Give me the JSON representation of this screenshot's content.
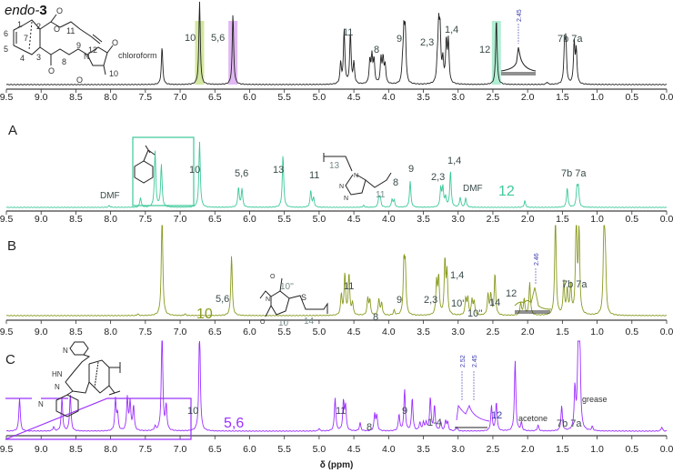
{
  "chart_data": [
    {
      "id": "endo-3",
      "type": "line",
      "title_prefix": "endo-",
      "title_number": "3",
      "color": "#222222",
      "xlim": [
        9.5,
        0.0
      ],
      "xlabel": "δ (ppm)",
      "highlights": [
        {
          "ppm": 6.72,
          "color": "#c8e08a"
        },
        {
          "ppm": 6.24,
          "color": "#d9a6f0"
        },
        {
          "ppm": 2.45,
          "color": "#9ee8c8"
        }
      ],
      "peaks": [
        [
          7.26,
          0.45
        ],
        [
          6.72,
          1.0
        ],
        [
          6.24,
          0.85
        ],
        [
          4.69,
          0.25
        ],
        [
          4.64,
          0.65
        ],
        [
          4.55,
          0.62
        ],
        [
          4.5,
          0.25
        ],
        [
          4.27,
          0.28
        ],
        [
          4.24,
          0.33
        ],
        [
          4.21,
          0.28
        ],
        [
          4.11,
          0.3
        ],
        [
          4.08,
          0.3
        ],
        [
          4.05,
          0.22
        ],
        [
          3.8,
          0.2
        ],
        [
          3.78,
          0.58
        ],
        [
          3.76,
          0.58
        ],
        [
          3.3,
          0.2
        ],
        [
          3.28,
          0.63
        ],
        [
          3.26,
          0.6
        ],
        [
          3.22,
          0.28
        ],
        [
          3.17,
          0.5
        ],
        [
          3.14,
          0.5
        ],
        [
          2.45,
          0.8
        ],
        [
          1.72,
          0.03
        ],
        [
          1.47,
          0.4
        ],
        [
          1.45,
          0.5
        ],
        [
          1.33,
          0.5
        ],
        [
          1.3,
          0.4
        ]
      ],
      "annotations": [
        "chloroform",
        "10",
        "5,6",
        "11",
        "8",
        "9",
        "2,3",
        "1,4",
        "12",
        "7b 7a"
      ],
      "inset_label": "2.45",
      "structure_labels": [
        "1",
        "2",
        "6",
        "7",
        "5",
        "4",
        "3",
        "11",
        "12",
        "8",
        "9",
        "10",
        "O",
        "O",
        "O",
        "O",
        "O",
        "N"
      ]
    },
    {
      "id": "A",
      "type": "line",
      "panel_label": "A",
      "color": "#3cc99a",
      "xlim": [
        9.5,
        0.0
      ],
      "peaks": [
        [
          8.02,
          0.03
        ],
        [
          7.57,
          0.15
        ],
        [
          7.36,
          0.85
        ],
        [
          7.27,
          0.65
        ],
        [
          6.72,
          1.0
        ],
        [
          6.16,
          0.3
        ],
        [
          6.11,
          0.28
        ],
        [
          5.52,
          0.8
        ],
        [
          5.12,
          0.25
        ],
        [
          5.08,
          0.14
        ],
        [
          4.36,
          0.03
        ],
        [
          4.14,
          0.15
        ],
        [
          4.12,
          0.13
        ],
        [
          3.95,
          0.12
        ],
        [
          3.92,
          0.1
        ],
        [
          3.69,
          0.4
        ],
        [
          3.25,
          0.28
        ],
        [
          3.22,
          0.3
        ],
        [
          3.18,
          0.15
        ],
        [
          3.11,
          0.55
        ],
        [
          2.97,
          0.15
        ],
        [
          2.89,
          0.14
        ],
        [
          2.04,
          0.1
        ],
        [
          1.43,
          0.3
        ],
        [
          1.29,
          0.28
        ],
        [
          1.27,
          0.28
        ]
      ],
      "annotations": [
        "DMF",
        "10",
        "5,6",
        "13",
        "11",
        "9",
        "2,3",
        "1,4",
        "DMF",
        "12",
        "7b 7a"
      ],
      "structure_labels": [
        "13",
        "11",
        "8",
        "N",
        "N",
        "N"
      ]
    },
    {
      "id": "B",
      "type": "line",
      "panel_label": "B",
      "color": "#8a9a20",
      "xlim": [
        9.5,
        0.0
      ],
      "peaks": [
        [
          7.61,
          0.02
        ],
        [
          7.26,
          1.3
        ],
        [
          6.93,
          0.02
        ],
        [
          6.26,
          0.73
        ],
        [
          4.68,
          0.25
        ],
        [
          4.63,
          0.5
        ],
        [
          4.57,
          0.5
        ],
        [
          4.52,
          0.15
        ],
        [
          4.3,
          0.2
        ],
        [
          4.27,
          0.18
        ],
        [
          4.14,
          0.2
        ],
        [
          4.1,
          0.15
        ],
        [
          3.92,
          0.06
        ],
        [
          3.78,
          0.6
        ],
        [
          3.76,
          0.55
        ],
        [
          3.31,
          0.4
        ],
        [
          3.28,
          0.45
        ],
        [
          3.19,
          0.65
        ],
        [
          3.16,
          0.5
        ],
        [
          2.89,
          0.2
        ],
        [
          2.86,
          0.2
        ],
        [
          2.8,
          0.18
        ],
        [
          2.77,
          0.16
        ],
        [
          2.57,
          0.25
        ],
        [
          2.53,
          0.25
        ],
        [
          2.47,
          0.5
        ],
        [
          2.1,
          0.15
        ],
        [
          2.05,
          0.2
        ],
        [
          1.97,
          0.4
        ],
        [
          1.6,
          1.3
        ],
        [
          1.48,
          0.4
        ],
        [
          1.43,
          0.3
        ],
        [
          1.38,
          0.35
        ],
        [
          1.3,
          1.3
        ],
        [
          1.26,
          1.0
        ],
        [
          0.9,
          1.3
        ],
        [
          0.88,
          0.5
        ]
      ],
      "annotations": [
        "5,6",
        "10",
        "11",
        "8",
        "9",
        "2,3",
        "1,4",
        "10'",
        "10''",
        "14",
        "12",
        "7b 7a"
      ],
      "inset_label": "2.46",
      "structure_labels": [
        "10''",
        "S",
        "14",
        "10'",
        "N",
        "O",
        "O"
      ]
    },
    {
      "id": "C",
      "type": "line",
      "panel_label": "C",
      "color": "#9b30ff",
      "xlim": [
        9.5,
        0.0
      ],
      "peaks": [
        [
          9.31,
          0.4
        ],
        [
          8.82,
          0.05
        ],
        [
          8.7,
          0.4
        ],
        [
          8.58,
          0.45
        ],
        [
          7.93,
          0.38
        ],
        [
          7.9,
          0.2
        ],
        [
          7.76,
          0.4
        ],
        [
          7.72,
          0.35
        ],
        [
          7.67,
          0.3
        ],
        [
          7.36,
          0.05
        ],
        [
          7.26,
          1.3
        ],
        [
          7.2,
          0.3
        ],
        [
          6.72,
          1.3
        ],
        [
          5.0,
          0.03
        ],
        [
          4.77,
          0.4
        ],
        [
          4.65,
          0.35
        ],
        [
          4.62,
          0.3
        ],
        [
          4.41,
          0.1
        ],
        [
          4.2,
          0.2
        ],
        [
          4.17,
          0.18
        ],
        [
          3.85,
          0.2
        ],
        [
          3.77,
          0.5
        ],
        [
          3.66,
          0.4
        ],
        [
          3.55,
          0.1
        ],
        [
          3.5,
          0.1
        ],
        [
          3.46,
          0.1
        ],
        [
          3.4,
          0.4
        ],
        [
          3.34,
          0.3
        ],
        [
          3.25,
          0.1
        ],
        [
          3.18,
          0.12
        ],
        [
          3.15,
          0.1
        ],
        [
          3.02,
          0.05
        ],
        [
          2.52,
          0.3
        ],
        [
          2.45,
          0.35
        ],
        [
          2.18,
          0.85
        ],
        [
          2.09,
          0.1
        ],
        [
          1.85,
          0.07
        ],
        [
          1.51,
          0.3
        ],
        [
          1.32,
          0.5
        ],
        [
          1.27,
          1.3
        ],
        [
          1.25,
          1.0
        ],
        [
          1.07,
          0.05
        ],
        [
          0.07,
          0.05
        ]
      ],
      "annotations": [
        "10",
        "5,6",
        "11",
        "8",
        "9",
        "1-4",
        "12",
        "acetone",
        "7b 7a",
        "grease"
      ],
      "inset_labels": [
        "2.52",
        "2.45"
      ],
      "structure_labels": [
        "HN",
        "N",
        "N",
        "N"
      ]
    }
  ],
  "ticks": [
    "9.5",
    "9.0",
    "8.5",
    "8.0",
    "7.5",
    "7.0",
    "6.5",
    "6.0",
    "5.5",
    "5.0",
    "4.5",
    "4.0",
    "3.5",
    "3.0",
    "2.5",
    "2.0",
    "1.5",
    "1.0",
    "0.5",
    "0.0"
  ]
}
